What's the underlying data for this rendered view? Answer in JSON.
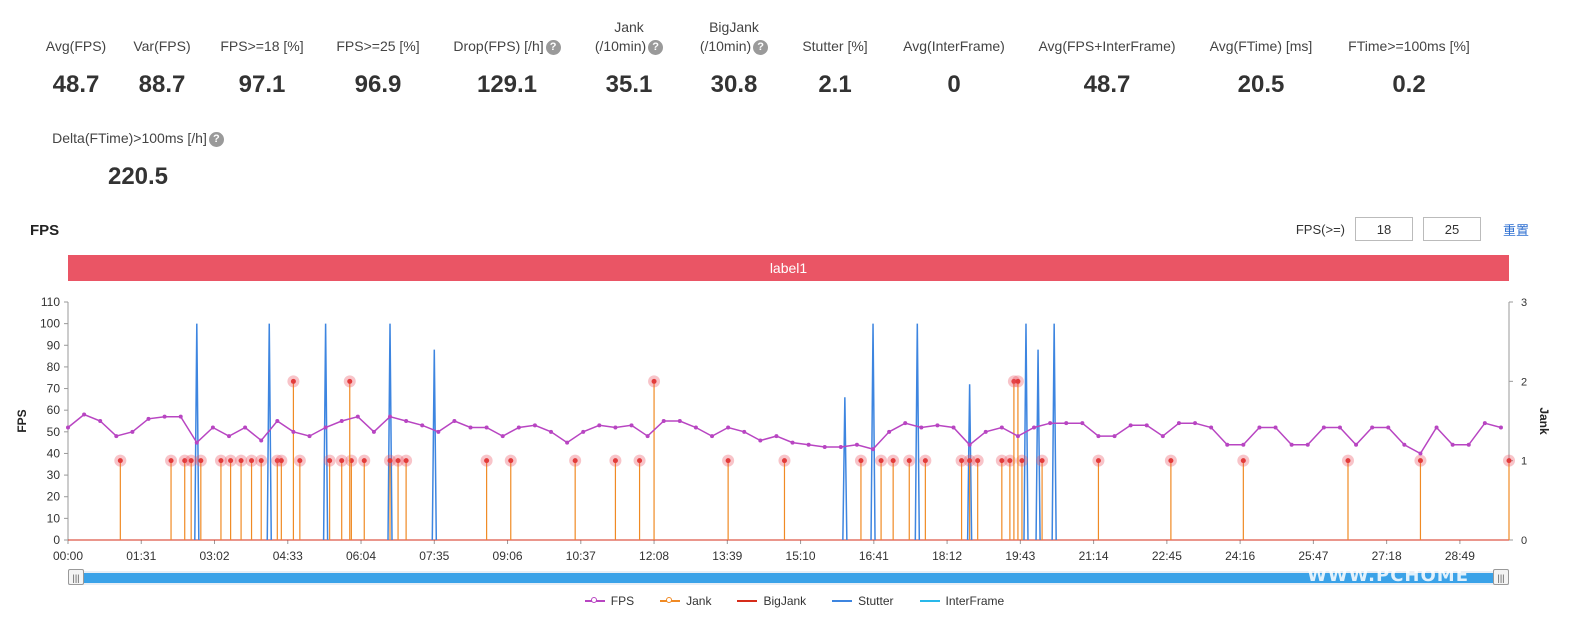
{
  "stats": [
    {
      "label": "Avg(FPS)",
      "value": "48.7",
      "help": false
    },
    {
      "label": "Var(FPS)",
      "value": "88.7",
      "help": false
    },
    {
      "label": "FPS>=18 [%]",
      "value": "97.1",
      "help": false
    },
    {
      "label": "FPS>=25 [%]",
      "value": "96.9",
      "help": false
    },
    {
      "label": "Drop(FPS) [/h]",
      "value": "129.1",
      "help": true
    },
    {
      "label": "Jank\n(/10min)",
      "value": "35.1",
      "help": true
    },
    {
      "label": "BigJank\n(/10min)",
      "value": "30.8",
      "help": true
    },
    {
      "label": "Stutter [%]",
      "value": "2.1",
      "help": false
    },
    {
      "label": "Avg(InterFrame)",
      "value": "0",
      "help": false
    },
    {
      "label": "Avg(FPS+InterFrame)",
      "value": "48.7",
      "help": false
    },
    {
      "label": "Avg(FTime) [ms]",
      "value": "20.5",
      "help": false
    },
    {
      "label": "FTime>=100ms [%]",
      "value": "0.2",
      "help": false
    },
    {
      "label": "Delta(FTime)>100ms [/h]",
      "value": "220.5",
      "help": true
    }
  ],
  "section_title": "FPS",
  "fps_filter": {
    "label": "FPS(>=)",
    "value1": "18",
    "value2": "25",
    "reset_label": "重置"
  },
  "label_bar": "label1",
  "watermark": "WWW.PCHOME",
  "legend": [
    {
      "name": "FPS",
      "color": "#b845c2",
      "marker": true
    },
    {
      "name": "Jank",
      "color": "#f08a24",
      "marker": true
    },
    {
      "name": "BigJank",
      "color": "#d62c1a",
      "marker": false
    },
    {
      "name": "Stutter",
      "color": "#3d85e0",
      "marker": false
    },
    {
      "name": "InterFrame",
      "color": "#29b8ea",
      "marker": false
    }
  ],
  "chart_data": {
    "type": "line",
    "ylabel": "FPS",
    "y2label": "Jank",
    "ylim": [
      0,
      110
    ],
    "y2lim": [
      0,
      3
    ],
    "yticks": [
      0,
      10,
      20,
      30,
      40,
      50,
      60,
      70,
      80,
      90,
      100,
      110
    ],
    "y2ticks": [
      0,
      1,
      2,
      3
    ],
    "xlim": [
      "00:00",
      "29:50"
    ],
    "xticks": [
      "00:00",
      "01:31",
      "03:02",
      "04:33",
      "06:04",
      "07:35",
      "09:06",
      "10:37",
      "12:08",
      "13:39",
      "15:10",
      "16:41",
      "18:12",
      "19:43",
      "21:14",
      "22:45",
      "24:16",
      "25:47",
      "27:18",
      "28:49"
    ],
    "fps_series": [
      {
        "t": "00:00",
        "fps": 52
      },
      {
        "t": "00:20",
        "fps": 58
      },
      {
        "t": "00:40",
        "fps": 55
      },
      {
        "t": "01:00",
        "fps": 48
      },
      {
        "t": "01:20",
        "fps": 50
      },
      {
        "t": "01:40",
        "fps": 56
      },
      {
        "t": "02:00",
        "fps": 57
      },
      {
        "t": "02:20",
        "fps": 57
      },
      {
        "t": "02:40",
        "fps": 45
      },
      {
        "t": "03:00",
        "fps": 52
      },
      {
        "t": "03:20",
        "fps": 48
      },
      {
        "t": "03:40",
        "fps": 52
      },
      {
        "t": "04:00",
        "fps": 46
      },
      {
        "t": "04:20",
        "fps": 55
      },
      {
        "t": "04:40",
        "fps": 50
      },
      {
        "t": "05:00",
        "fps": 48
      },
      {
        "t": "05:20",
        "fps": 52
      },
      {
        "t": "05:40",
        "fps": 55
      },
      {
        "t": "06:00",
        "fps": 57
      },
      {
        "t": "06:20",
        "fps": 50
      },
      {
        "t": "06:40",
        "fps": 57
      },
      {
        "t": "07:00",
        "fps": 55
      },
      {
        "t": "07:20",
        "fps": 53
      },
      {
        "t": "07:40",
        "fps": 50
      },
      {
        "t": "08:00",
        "fps": 55
      },
      {
        "t": "08:20",
        "fps": 52
      },
      {
        "t": "08:40",
        "fps": 52
      },
      {
        "t": "09:00",
        "fps": 48
      },
      {
        "t": "09:20",
        "fps": 52
      },
      {
        "t": "09:40",
        "fps": 53
      },
      {
        "t": "10:00",
        "fps": 50
      },
      {
        "t": "10:20",
        "fps": 45
      },
      {
        "t": "10:40",
        "fps": 50
      },
      {
        "t": "11:00",
        "fps": 53
      },
      {
        "t": "11:20",
        "fps": 52
      },
      {
        "t": "11:40",
        "fps": 53
      },
      {
        "t": "12:00",
        "fps": 48
      },
      {
        "t": "12:20",
        "fps": 55
      },
      {
        "t": "12:40",
        "fps": 55
      },
      {
        "t": "13:00",
        "fps": 52
      },
      {
        "t": "13:20",
        "fps": 48
      },
      {
        "t": "13:40",
        "fps": 52
      },
      {
        "t": "14:00",
        "fps": 50
      },
      {
        "t": "14:20",
        "fps": 46
      },
      {
        "t": "14:40",
        "fps": 48
      },
      {
        "t": "15:00",
        "fps": 45
      },
      {
        "t": "15:20",
        "fps": 44
      },
      {
        "t": "15:40",
        "fps": 43
      },
      {
        "t": "16:00",
        "fps": 43
      },
      {
        "t": "16:20",
        "fps": 44
      },
      {
        "t": "16:40",
        "fps": 42
      },
      {
        "t": "17:00",
        "fps": 50
      },
      {
        "t": "17:20",
        "fps": 54
      },
      {
        "t": "17:40",
        "fps": 52
      },
      {
        "t": "18:00",
        "fps": 53
      },
      {
        "t": "18:20",
        "fps": 52
      },
      {
        "t": "18:40",
        "fps": 44
      },
      {
        "t": "19:00",
        "fps": 50
      },
      {
        "t": "19:20",
        "fps": 52
      },
      {
        "t": "19:40",
        "fps": 48
      },
      {
        "t": "20:00",
        "fps": 52
      },
      {
        "t": "20:20",
        "fps": 54
      },
      {
        "t": "20:40",
        "fps": 54
      },
      {
        "t": "21:00",
        "fps": 54
      },
      {
        "t": "21:20",
        "fps": 48
      },
      {
        "t": "21:40",
        "fps": 48
      },
      {
        "t": "22:00",
        "fps": 53
      },
      {
        "t": "22:20",
        "fps": 53
      },
      {
        "t": "22:40",
        "fps": 48
      },
      {
        "t": "23:00",
        "fps": 54
      },
      {
        "t": "23:20",
        "fps": 54
      },
      {
        "t": "23:40",
        "fps": 52
      },
      {
        "t": "24:00",
        "fps": 44
      },
      {
        "t": "24:20",
        "fps": 44
      },
      {
        "t": "24:40",
        "fps": 52
      },
      {
        "t": "25:00",
        "fps": 52
      },
      {
        "t": "25:20",
        "fps": 44
      },
      {
        "t": "25:40",
        "fps": 44
      },
      {
        "t": "26:00",
        "fps": 52
      },
      {
        "t": "26:20",
        "fps": 52
      },
      {
        "t": "26:40",
        "fps": 44
      },
      {
        "t": "27:00",
        "fps": 52
      },
      {
        "t": "27:20",
        "fps": 52
      },
      {
        "t": "27:40",
        "fps": 44
      },
      {
        "t": "28:00",
        "fps": 40
      },
      {
        "t": "28:20",
        "fps": 52
      },
      {
        "t": "28:40",
        "fps": 44
      },
      {
        "t": "29:00",
        "fps": 44
      },
      {
        "t": "29:20",
        "fps": 54
      },
      {
        "t": "29:40",
        "fps": 52
      }
    ],
    "jank_events": [
      "01:05",
      "02:08",
      "02:25",
      "02:33",
      "02:45",
      "03:10",
      "03:22",
      "03:35",
      "03:48",
      "04:00",
      "04:20",
      "04:25",
      "04:48",
      "05:25",
      "05:40",
      "05:52",
      "06:08",
      "06:40",
      "06:50",
      "07:00",
      "08:40",
      "09:10",
      "10:30",
      "11:20",
      "11:50",
      "13:40",
      "14:50",
      "16:25",
      "16:50",
      "17:05",
      "17:25",
      "17:45",
      "18:30",
      "18:40",
      "18:50",
      "19:20",
      "19:30",
      "19:45",
      "20:10",
      "21:20",
      "22:50",
      "24:20",
      "26:30",
      "28:00",
      "29:50"
    ],
    "jank_high": [
      "04:40",
      "05:50",
      "12:08",
      "19:35",
      "19:40"
    ],
    "stutter_peaks": [
      {
        "t": "02:40",
        "v": 100
      },
      {
        "t": "04:10",
        "v": 100
      },
      {
        "t": "05:20",
        "v": 100
      },
      {
        "t": "06:40",
        "v": 100
      },
      {
        "t": "07:35",
        "v": 88
      },
      {
        "t": "16:05",
        "v": 66
      },
      {
        "t": "16:40",
        "v": 100
      },
      {
        "t": "17:35",
        "v": 100
      },
      {
        "t": "18:40",
        "v": 72
      },
      {
        "t": "19:50",
        "v": 100
      },
      {
        "t": "20:05",
        "v": 88
      },
      {
        "t": "20:25",
        "v": 100
      }
    ],
    "bigjank_level": 0
  }
}
